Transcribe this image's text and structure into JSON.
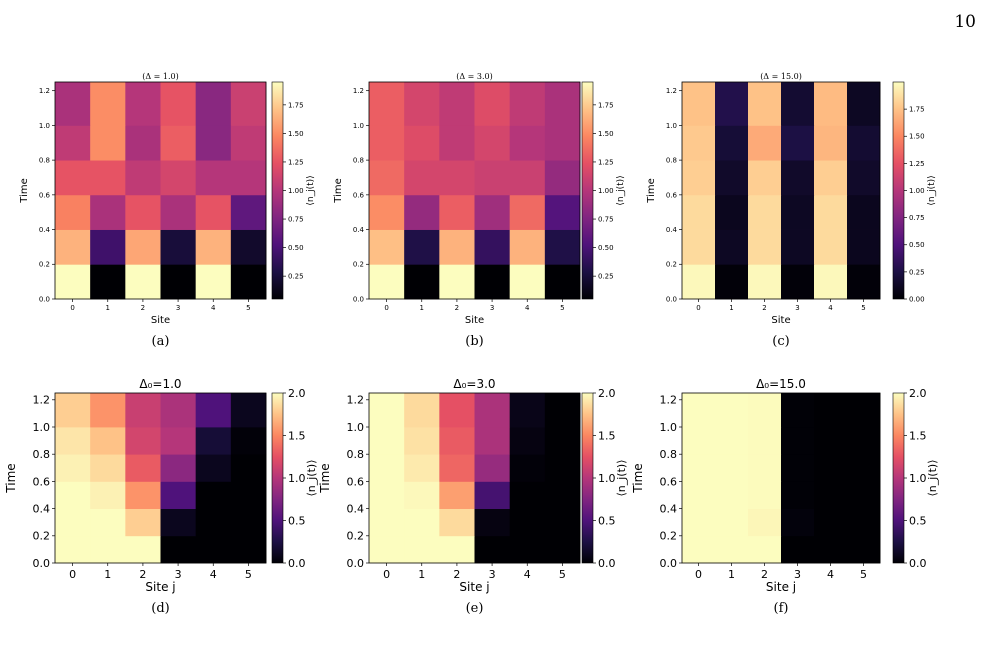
{
  "page_number": "10",
  "colormap": [
    "#000004",
    "#1c1044",
    "#4f127b",
    "#812581",
    "#b5367a",
    "#e55064",
    "#fb8761",
    "#fec287",
    "#fcfdbf"
  ],
  "chart_data": [
    {
      "type": "heatmap",
      "panel": "(a)",
      "title": "(Δ = 1.0)",
      "xlabel": "Site",
      "ylabel": "Time",
      "colorbar_label": "⟨n_j(t)⟩",
      "x": [
        0,
        1,
        2,
        3,
        4,
        5
      ],
      "y_edges": [
        0.0,
        0.2,
        0.4,
        0.6,
        0.8,
        1.0,
        1.25
      ],
      "yticks": [
        "0.0",
        "0.2",
        "0.4",
        "0.6",
        "0.8",
        "1.0",
        "1.2"
      ],
      "cbar_range": [
        0.05,
        1.95
      ],
      "cbar_ticks": [
        "0.25",
        "0.50",
        "0.75",
        "1.00",
        "1.25",
        "1.50",
        "1.75"
      ],
      "values": [
        [
          1.95,
          0.05,
          1.95,
          0.05,
          1.95,
          0.05
        ],
        [
          1.65,
          0.45,
          1.6,
          0.25,
          1.65,
          0.2
        ],
        [
          1.45,
          0.95,
          1.25,
          0.95,
          1.25,
          0.6
        ],
        [
          1.25,
          1.25,
          1.05,
          1.15,
          1.0,
          1.0
        ],
        [
          1.05,
          1.5,
          0.95,
          1.3,
          0.8,
          1.05
        ],
        [
          0.95,
          1.5,
          1.0,
          1.25,
          0.8,
          1.1
        ]
      ]
    },
    {
      "type": "heatmap",
      "panel": "(b)",
      "title": "(Δ = 3.0)",
      "xlabel": "Site",
      "ylabel": "Time",
      "colorbar_label": "⟨n_j(t)⟩",
      "x": [
        0,
        1,
        2,
        3,
        4,
        5
      ],
      "y_edges": [
        0.0,
        0.2,
        0.4,
        0.6,
        0.8,
        1.0,
        1.25
      ],
      "yticks": [
        "0.0",
        "0.2",
        "0.4",
        "0.6",
        "0.8",
        "1.0",
        "1.2"
      ],
      "cbar_range": [
        0.05,
        1.95
      ],
      "cbar_ticks": [
        "0.25",
        "0.50",
        "0.75",
        "1.00",
        "1.25",
        "1.50",
        "1.75"
      ],
      "values": [
        [
          1.95,
          0.05,
          1.95,
          0.05,
          1.95,
          0.05
        ],
        [
          1.7,
          0.3,
          1.65,
          0.4,
          1.65,
          0.3
        ],
        [
          1.5,
          0.85,
          1.3,
          0.9,
          1.35,
          0.55
        ],
        [
          1.35,
          1.15,
          1.15,
          1.1,
          1.1,
          0.85
        ],
        [
          1.3,
          1.2,
          1.05,
          1.15,
          1.0,
          0.95
        ],
        [
          1.3,
          1.15,
          1.05,
          1.2,
          1.05,
          0.95
        ]
      ]
    },
    {
      "type": "heatmap",
      "panel": "(c)",
      "title": "(Δ = 15.0)",
      "xlabel": "Site",
      "ylabel": "Time",
      "colorbar_label": "⟨n_j(t)⟩",
      "x": [
        0,
        1,
        2,
        3,
        4,
        5
      ],
      "y_edges": [
        0.0,
        0.2,
        0.4,
        0.6,
        0.8,
        1.0,
        1.25
      ],
      "yticks": [
        "0.0",
        "0.2",
        "0.4",
        "0.6",
        "0.8",
        "1.0",
        "1.2"
      ],
      "cbar_range": [
        0.0,
        2.0
      ],
      "cbar_ticks": [
        "0.00",
        "0.25",
        "0.50",
        "0.75",
        "1.00",
        "1.25",
        "1.50",
        "1.75"
      ],
      "values": [
        [
          1.98,
          0.02,
          1.98,
          0.02,
          1.98,
          0.02
        ],
        [
          1.85,
          0.12,
          1.85,
          0.12,
          1.85,
          0.1
        ],
        [
          1.85,
          0.1,
          1.85,
          0.12,
          1.85,
          0.1
        ],
        [
          1.8,
          0.15,
          1.8,
          0.15,
          1.8,
          0.15
        ],
        [
          1.78,
          0.2,
          1.65,
          0.25,
          1.7,
          0.18
        ],
        [
          1.75,
          0.28,
          1.75,
          0.18,
          1.72,
          0.12
        ]
      ]
    },
    {
      "type": "heatmap",
      "panel": "(d)",
      "title": "Δ₀=1.0",
      "xlabel": "Site j",
      "ylabel": "Time",
      "colorbar_label": "⟨n_j(t)⟩",
      "x": [
        0,
        1,
        2,
        3,
        4,
        5
      ],
      "y_edges": [
        0.0,
        0.2,
        0.4,
        0.6,
        0.8,
        1.0,
        1.25
      ],
      "yticks": [
        "0.0",
        "0.2",
        "0.4",
        "0.6",
        "0.8",
        "1.0",
        "1.2"
      ],
      "cbar_range": [
        0.0,
        2.0
      ],
      "cbar_ticks": [
        "0.0",
        "0.5",
        "1.0",
        "1.5",
        "2.0"
      ],
      "values": [
        [
          2.0,
          2.0,
          2.0,
          0.0,
          0.0,
          0.0
        ],
        [
          2.0,
          2.0,
          1.8,
          0.1,
          0.0,
          0.0
        ],
        [
          2.0,
          1.95,
          1.55,
          0.5,
          0.0,
          0.0
        ],
        [
          1.95,
          1.85,
          1.3,
          0.8,
          0.1,
          0.0
        ],
        [
          1.9,
          1.75,
          1.15,
          1.0,
          0.2,
          0.02
        ],
        [
          1.8,
          1.55,
          1.1,
          0.95,
          0.5,
          0.1
        ]
      ]
    },
    {
      "type": "heatmap",
      "panel": "(e)",
      "title": "Δ₀=3.0",
      "xlabel": "Site j",
      "ylabel": "Time",
      "colorbar_label": "⟨n_j(t)⟩",
      "x": [
        0,
        1,
        2,
        3,
        4,
        5
      ],
      "y_edges": [
        0.0,
        0.2,
        0.4,
        0.6,
        0.8,
        1.0,
        1.25
      ],
      "yticks": [
        "0.0",
        "0.2",
        "0.4",
        "0.6",
        "0.8",
        "1.0",
        "1.2"
      ],
      "cbar_range": [
        0.0,
        2.0
      ],
      "cbar_ticks": [
        "0.0",
        "0.5",
        "1.0",
        "1.5",
        "2.0"
      ],
      "values": [
        [
          2.0,
          2.0,
          2.0,
          0.0,
          0.0,
          0.0
        ],
        [
          2.0,
          2.0,
          1.85,
          0.05,
          0.0,
          0.0
        ],
        [
          2.0,
          1.98,
          1.6,
          0.45,
          0.0,
          0.0
        ],
        [
          2.0,
          1.92,
          1.35,
          0.85,
          0.02,
          0.0
        ],
        [
          2.0,
          1.88,
          1.3,
          0.95,
          0.05,
          0.0
        ],
        [
          2.0,
          1.85,
          1.25,
          0.95,
          0.08,
          0.0
        ]
      ]
    },
    {
      "type": "heatmap",
      "panel": "(f)",
      "title": "Δ₀=15.0",
      "xlabel": "Site j",
      "ylabel": "Time",
      "colorbar_label": "⟨n_j(t)⟩",
      "x": [
        0,
        1,
        2,
        3,
        4,
        5
      ],
      "y_edges": [
        0.0,
        0.2,
        0.4,
        0.6,
        0.8,
        1.0,
        1.25
      ],
      "yticks": [
        "0.0",
        "0.2",
        "0.4",
        "0.6",
        "0.8",
        "1.0",
        "1.2"
      ],
      "cbar_range": [
        0.0,
        2.0
      ],
      "cbar_ticks": [
        "0.0",
        "0.5",
        "1.0",
        "1.5",
        "2.0"
      ],
      "values": [
        [
          2.0,
          2.0,
          2.0,
          0.0,
          0.0,
          0.0
        ],
        [
          2.0,
          2.0,
          1.97,
          0.03,
          0.0,
          0.0
        ],
        [
          2.0,
          2.0,
          1.99,
          0.01,
          0.0,
          0.0
        ],
        [
          2.0,
          2.0,
          1.99,
          0.01,
          0.0,
          0.0
        ],
        [
          2.0,
          2.0,
          1.99,
          0.01,
          0.0,
          0.0
        ],
        [
          2.0,
          2.0,
          1.99,
          0.01,
          0.0,
          0.0
        ]
      ]
    }
  ]
}
